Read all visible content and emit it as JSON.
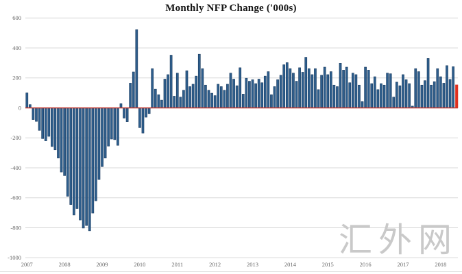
{
  "chart_data": {
    "type": "bar",
    "title": "Monthly NFP Change ('000s)",
    "unit": "thousands of jobs",
    "x_start": "2007-06",
    "x_end": "2018-11",
    "x_year_labels": [
      "2007",
      "2008",
      "2009",
      "2010",
      "2011",
      "2012",
      "2013",
      "2014",
      "2015",
      "2016",
      "2017",
      "2018"
    ],
    "y_ticks": [
      600,
      400,
      200,
      0,
      -200,
      -400,
      -600,
      -800,
      -1000
    ],
    "ylim": [
      -1000,
      600
    ],
    "grid": true,
    "legend": false,
    "values": [
      100,
      22,
      -78,
      -90,
      -150,
      -205,
      -220,
      -190,
      -258,
      -280,
      -335,
      -428,
      -452,
      -590,
      -645,
      -715,
      -672,
      -748,
      -802,
      -785,
      -820,
      -702,
      -620,
      -478,
      -392,
      -335,
      -255,
      -208,
      -212,
      -250,
      28,
      -68,
      -92,
      165,
      240,
      522,
      -132,
      -168,
      -62,
      -38,
      262,
      125,
      88,
      52,
      192,
      222,
      352,
      78,
      232,
      72,
      118,
      248,
      142,
      158,
      212,
      358,
      262,
      152,
      118,
      98,
      82,
      158,
      142,
      118,
      158,
      232,
      192,
      148,
      268,
      92,
      198,
      178,
      188,
      162,
      192,
      168,
      212,
      242,
      88,
      142,
      188,
      218,
      288,
      302,
      262,
      232,
      178,
      268,
      238,
      338,
      262,
      222,
      262,
      122,
      218,
      272,
      222,
      242,
      152,
      142,
      298,
      252,
      272,
      168,
      232,
      222,
      152,
      42,
      272,
      252,
      162,
      208,
      122,
      162,
      152,
      232,
      228,
      72,
      172,
      148,
      222,
      188,
      162,
      12,
      262,
      242,
      152,
      182,
      330,
      152,
      175,
      262,
      208,
      165,
      282,
      190,
      275,
      155
    ],
    "last_value": 155,
    "bar_color": "#2E5E8C",
    "bar_border_color": "#1B3B5F",
    "highlight_last_bar": true,
    "highlight_color": "#E0301E",
    "zero_line_color": "#C5352A",
    "gridline_color": "#D8D8D8",
    "axis_label_color": "#666666"
  },
  "watermark": {
    "text": "汇外网"
  }
}
